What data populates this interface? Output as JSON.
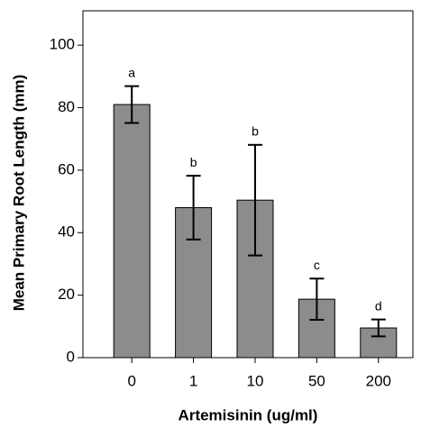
{
  "chart_data": {
    "type": "bar",
    "x_label": "Artemisinin (ug/ml)",
    "y_label": "Mean Primary Root Length (mm)",
    "categories": [
      "0",
      "1",
      "10",
      "50",
      "200"
    ],
    "values": [
      81,
      48,
      50.4,
      18.7,
      9.5
    ],
    "errors": [
      5.9,
      10.2,
      17.7,
      6.6,
      2.7
    ],
    "letters": [
      "a",
      "b",
      "b",
      "c",
      "d"
    ],
    "color": "#8c8c8c",
    "ylim": [
      0,
      111
    ],
    "yticks": [
      0,
      20,
      40,
      60,
      80,
      100
    ]
  }
}
